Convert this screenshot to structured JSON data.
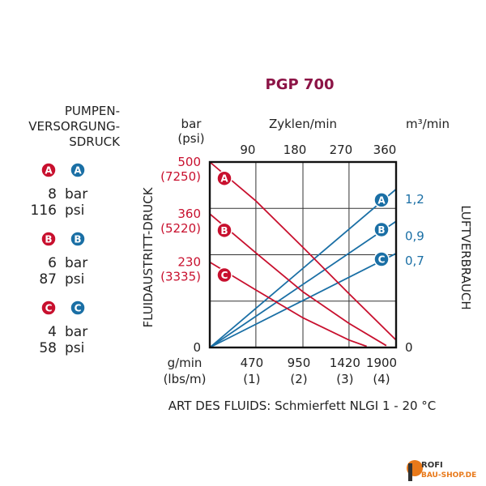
{
  "colors": {
    "title": "#8c1446",
    "pressure": "#c8102e",
    "air": "#1a6fa5",
    "text": "#222222",
    "grid": "#333333",
    "logo_orange": "#e8791a",
    "logo_dark": "#333333"
  },
  "chart_data": {
    "type": "line",
    "title": "PGP 700",
    "xlabel_bottom_unit": [
      "g/min",
      "(lbs/m)"
    ],
    "xlabel_top": "Zyklen/min",
    "ylabel_left": "FLUIDAUSTRITT-DRUCK",
    "ylabel_left_unit": [
      "bar",
      "(psi)"
    ],
    "ylabel_right": "LUFTVERBRAUCH",
    "ylabel_right_unit": "m³/min",
    "x_bottom_ticks": [
      {
        "value": 470,
        "label": "470",
        "sub": "(1)"
      },
      {
        "value": 950,
        "label": "950",
        "sub": "(2)"
      },
      {
        "value": 1420,
        "label": "1420",
        "sub": "(3)"
      },
      {
        "value": 1900,
        "label": "1900",
        "sub": "(4)"
      }
    ],
    "x_top_ticks": [
      {
        "value": 470,
        "label": "90"
      },
      {
        "value": 950,
        "label": "180"
      },
      {
        "value": 1420,
        "label": "270"
      },
      {
        "value": 1900,
        "label": "360"
      }
    ],
    "xlim": [
      0,
      1900
    ],
    "ylim_left": [
      0,
      500
    ],
    "y_left_zero": "0",
    "y_left_ticks": [
      {
        "value": 500,
        "label": "500",
        "sub": "(7250)"
      },
      {
        "value": 360,
        "label": "360",
        "sub": "(5220)"
      },
      {
        "value": 230,
        "label": "230",
        "sub": "(3335)"
      }
    ],
    "ylim_right": [
      0,
      1.5
    ],
    "y_right_ticks": [
      {
        "value": 0,
        "label": "0"
      },
      {
        "value": 0.7,
        "label": "0,7"
      },
      {
        "value": 0.9,
        "label": "0,9"
      },
      {
        "value": 1.2,
        "label": "1,2"
      }
    ],
    "grid": true,
    "pressure_series": [
      {
        "name": "A",
        "x": [
          0,
          470,
          950,
          1420,
          1900
        ],
        "y": [
          500,
          395,
          270,
          145,
          20
        ]
      },
      {
        "name": "B",
        "x": [
          0,
          470,
          950,
          1420,
          1800
        ],
        "y": [
          360,
          255,
          150,
          65,
          5
        ]
      },
      {
        "name": "C",
        "x": [
          0,
          470,
          950,
          1420,
          1600
        ],
        "y": [
          230,
          155,
          80,
          20,
          3
        ]
      }
    ],
    "air_series": [
      {
        "name": "A",
        "x": [
          0,
          1900
        ],
        "y": [
          0,
          1.28
        ]
      },
      {
        "name": "B",
        "x": [
          0,
          1900
        ],
        "y": [
          0,
          1.02
        ]
      },
      {
        "name": "C",
        "x": [
          0,
          1900
        ],
        "y": [
          0,
          0.76
        ]
      }
    ],
    "footer": "ART DES FLUIDS: Schmierfett NLGI 1 - 20 °C"
  },
  "legend": {
    "title_lines": [
      "PUMPEN-",
      "VERSORGUNG-",
      "SDRUCK"
    ],
    "items": [
      {
        "letter": "A",
        "bar": "8",
        "psi": "116"
      },
      {
        "letter": "B",
        "bar": "6",
        "psi": "87"
      },
      {
        "letter": "C",
        "bar": "4",
        "psi": "58"
      }
    ],
    "unit_bar": "bar",
    "unit_psi": "psi"
  },
  "logo": {
    "line1": "ROFI",
    "line2": "BAU-SHOP.DE"
  }
}
